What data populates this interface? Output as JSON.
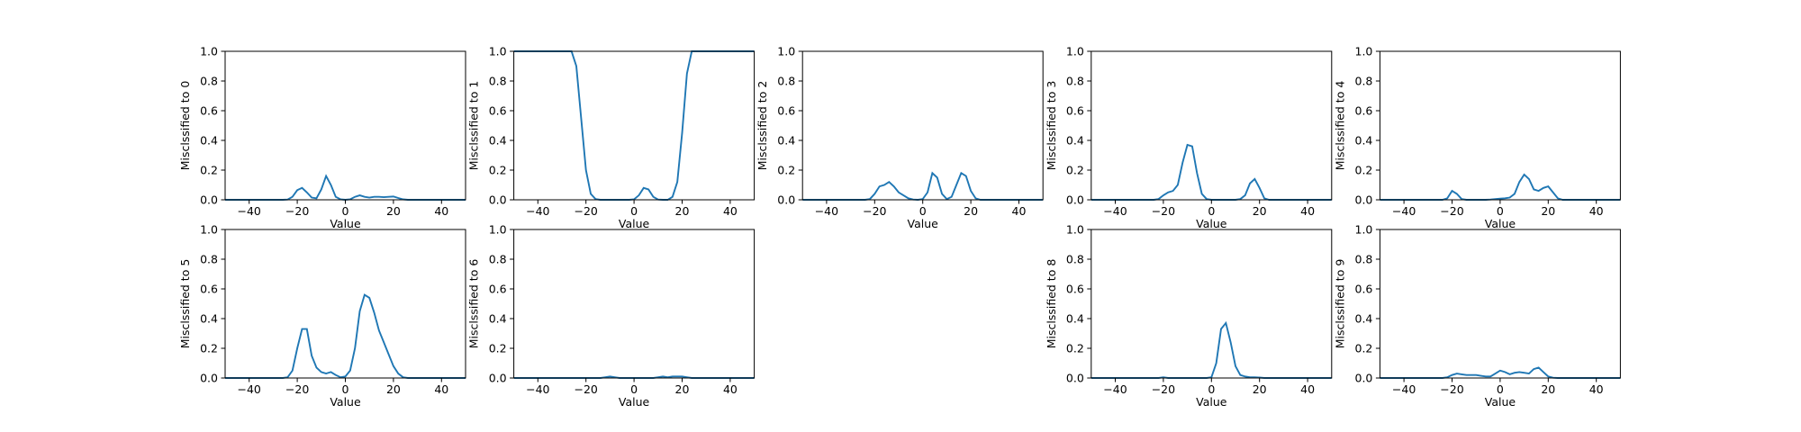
{
  "chart_data": [
    {
      "type": "line",
      "ylabel": "Misclssified to 0",
      "xlabel": "Value",
      "color": "#1f77b4",
      "x": [
        -50,
        -48,
        -46,
        -44,
        -42,
        -40,
        -38,
        -36,
        -34,
        -32,
        -30,
        -28,
        -26,
        -24,
        -22,
        -20,
        -18,
        -16,
        -14,
        -12,
        -10,
        -8,
        -6,
        -4,
        -2,
        0,
        2,
        4,
        6,
        8,
        10,
        12,
        14,
        16,
        18,
        20,
        22,
        24,
        26,
        28,
        30,
        32,
        34,
        36,
        38,
        40,
        42,
        44,
        46,
        48,
        50
      ],
      "values": [
        0,
        0,
        0,
        0,
        0,
        0,
        0,
        0,
        0,
        0,
        0,
        0,
        0,
        0.002,
        0.02,
        0.065,
        0.08,
        0.05,
        0.015,
        0.01,
        0.07,
        0.16,
        0.1,
        0.02,
        0.003,
        0,
        0.003,
        0.02,
        0.03,
        0.02,
        0.015,
        0.02,
        0.02,
        0.018,
        0.02,
        0.022,
        0.012,
        0.003,
        0,
        0,
        0,
        0,
        0,
        0,
        0,
        0,
        0,
        0,
        0,
        0,
        0
      ],
      "xlim": [
        -50,
        50
      ],
      "ylim": [
        0,
        1
      ],
      "xticks": [
        {
          "value": -40,
          "label": "−40"
        },
        {
          "value": -20,
          "label": "−20"
        },
        0,
        20,
        40
      ],
      "yticks": [
        {
          "value": 0,
          "label": "0.0"
        },
        {
          "value": 0.2,
          "label": "0.2"
        },
        {
          "value": 0.4,
          "label": "0.4"
        },
        {
          "value": 0.6,
          "label": "0.6"
        },
        {
          "value": 0.8,
          "label": "0.8"
        },
        {
          "value": 1,
          "label": "1.0"
        }
      ]
    },
    {
      "type": "line",
      "ylabel": "Misclssified to 1",
      "xlabel": "Value",
      "color": "#1f77b4",
      "x": [
        -50,
        -48,
        -46,
        -44,
        -42,
        -40,
        -38,
        -36,
        -34,
        -32,
        -30,
        -28,
        -26,
        -24,
        -22,
        -20,
        -18,
        -16,
        -14,
        -12,
        -10,
        -8,
        -6,
        -4,
        -2,
        0,
        2,
        4,
        6,
        8,
        10,
        12,
        14,
        16,
        18,
        20,
        22,
        24,
        26,
        28,
        30,
        32,
        34,
        36,
        38,
        40,
        42,
        44,
        46,
        48,
        50
      ],
      "values": [
        1,
        1,
        1,
        1,
        1,
        1,
        1,
        1,
        1,
        1,
        1,
        1,
        1,
        0.9,
        0.55,
        0.2,
        0.04,
        0.005,
        0,
        0,
        0,
        0,
        0,
        0,
        0,
        0.003,
        0.03,
        0.08,
        0.07,
        0.02,
        0.002,
        0,
        0,
        0.02,
        0.12,
        0.45,
        0.85,
        1,
        1,
        1,
        1,
        1,
        1,
        1,
        1,
        1,
        1,
        1,
        1,
        1,
        1
      ],
      "xlim": [
        -50,
        50
      ],
      "ylim": [
        0,
        1
      ],
      "xticks": [
        {
          "value": -40,
          "label": "−40"
        },
        {
          "value": -20,
          "label": "−20"
        },
        0,
        20,
        40
      ],
      "yticks": [
        {
          "value": 0,
          "label": "0.0"
        },
        {
          "value": 0.2,
          "label": "0.2"
        },
        {
          "value": 0.4,
          "label": "0.4"
        },
        {
          "value": 0.6,
          "label": "0.6"
        },
        {
          "value": 0.8,
          "label": "0.8"
        },
        {
          "value": 1,
          "label": "1.0"
        }
      ]
    },
    {
      "type": "line",
      "ylabel": "Misclssified to 2",
      "xlabel": "Value",
      "color": "#1f77b4",
      "x": [
        -50,
        -48,
        -46,
        -44,
        -42,
        -40,
        -38,
        -36,
        -34,
        -32,
        -30,
        -28,
        -26,
        -24,
        -22,
        -20,
        -18,
        -16,
        -14,
        -12,
        -10,
        -8,
        -6,
        -4,
        -2,
        0,
        2,
        4,
        6,
        8,
        10,
        12,
        14,
        16,
        18,
        20,
        22,
        24,
        26,
        28,
        30,
        32,
        34,
        36,
        38,
        40,
        42,
        44,
        46,
        48,
        50
      ],
      "values": [
        0,
        0,
        0,
        0,
        0,
        0,
        0,
        0,
        0,
        0,
        0,
        0,
        0,
        0,
        0.005,
        0.04,
        0.09,
        0.1,
        0.12,
        0.09,
        0.05,
        0.03,
        0.01,
        0.002,
        0,
        0.005,
        0.05,
        0.18,
        0.15,
        0.04,
        0.005,
        0.02,
        0.1,
        0.18,
        0.16,
        0.06,
        0.01,
        0,
        0,
        0,
        0,
        0,
        0,
        0,
        0,
        0,
        0,
        0,
        0,
        0,
        0
      ],
      "xlim": [
        -50,
        50
      ],
      "ylim": [
        0,
        1
      ],
      "xticks": [
        {
          "value": -40,
          "label": "−40"
        },
        {
          "value": -20,
          "label": "−20"
        },
        0,
        20,
        40
      ],
      "yticks": [
        {
          "value": 0,
          "label": "0.0"
        },
        {
          "value": 0.2,
          "label": "0.2"
        },
        {
          "value": 0.4,
          "label": "0.4"
        },
        {
          "value": 0.6,
          "label": "0.6"
        },
        {
          "value": 0.8,
          "label": "0.8"
        },
        {
          "value": 1,
          "label": "1.0"
        }
      ]
    },
    {
      "type": "line",
      "ylabel": "Misclssified to 3",
      "xlabel": "Value",
      "color": "#1f77b4",
      "x": [
        -50,
        -48,
        -46,
        -44,
        -42,
        -40,
        -38,
        -36,
        -34,
        -32,
        -30,
        -28,
        -26,
        -24,
        -22,
        -20,
        -18,
        -16,
        -14,
        -12,
        -10,
        -8,
        -6,
        -4,
        -2,
        0,
        2,
        4,
        6,
        8,
        10,
        12,
        14,
        16,
        18,
        20,
        22,
        24,
        26,
        28,
        30,
        32,
        34,
        36,
        38,
        40,
        42,
        44,
        46,
        48,
        50
      ],
      "values": [
        0,
        0,
        0,
        0,
        0,
        0,
        0,
        0,
        0,
        0,
        0,
        0,
        0,
        0,
        0.005,
        0.03,
        0.05,
        0.06,
        0.1,
        0.25,
        0.37,
        0.36,
        0.18,
        0.04,
        0.005,
        0,
        0,
        0,
        0,
        0,
        0,
        0.005,
        0.03,
        0.11,
        0.14,
        0.08,
        0.01,
        0,
        0,
        0,
        0,
        0,
        0,
        0,
        0,
        0,
        0,
        0,
        0,
        0,
        0
      ],
      "xlim": [
        -50,
        50
      ],
      "ylim": [
        0,
        1
      ],
      "xticks": [
        {
          "value": -40,
          "label": "−40"
        },
        {
          "value": -20,
          "label": "−20"
        },
        0,
        20,
        40
      ],
      "yticks": [
        {
          "value": 0,
          "label": "0.0"
        },
        {
          "value": 0.2,
          "label": "0.2"
        },
        {
          "value": 0.4,
          "label": "0.4"
        },
        {
          "value": 0.6,
          "label": "0.6"
        },
        {
          "value": 0.8,
          "label": "0.8"
        },
        {
          "value": 1,
          "label": "1.0"
        }
      ]
    },
    {
      "type": "line",
      "ylabel": "Misclssified to 4",
      "xlabel": "Value",
      "color": "#1f77b4",
      "x": [
        -50,
        -48,
        -46,
        -44,
        -42,
        -40,
        -38,
        -36,
        -34,
        -32,
        -30,
        -28,
        -26,
        -24,
        -22,
        -20,
        -18,
        -16,
        -14,
        -12,
        -10,
        -8,
        -6,
        -4,
        -2,
        0,
        2,
        4,
        6,
        8,
        10,
        12,
        14,
        16,
        18,
        20,
        22,
        24,
        26,
        28,
        30,
        32,
        34,
        36,
        38,
        40,
        42,
        44,
        46,
        48,
        50
      ],
      "values": [
        0,
        0,
        0,
        0,
        0,
        0,
        0,
        0,
        0,
        0,
        0,
        0,
        0,
        0,
        0.01,
        0.06,
        0.04,
        0.005,
        0,
        0,
        0,
        0,
        0,
        0.002,
        0.005,
        0.008,
        0.01,
        0.015,
        0.04,
        0.12,
        0.17,
        0.14,
        0.07,
        0.06,
        0.08,
        0.09,
        0.05,
        0.01,
        0,
        0,
        0,
        0,
        0,
        0,
        0,
        0,
        0,
        0,
        0,
        0,
        0
      ],
      "xlim": [
        -50,
        50
      ],
      "ylim": [
        0,
        1
      ],
      "xticks": [
        {
          "value": -40,
          "label": "−40"
        },
        {
          "value": -20,
          "label": "−20"
        },
        0,
        20,
        40
      ],
      "yticks": [
        {
          "value": 0,
          "label": "0.0"
        },
        {
          "value": 0.2,
          "label": "0.2"
        },
        {
          "value": 0.4,
          "label": "0.4"
        },
        {
          "value": 0.6,
          "label": "0.6"
        },
        {
          "value": 0.8,
          "label": "0.8"
        },
        {
          "value": 1,
          "label": "1.0"
        }
      ]
    },
    {
      "type": "line",
      "ylabel": "Misclssified to 5",
      "xlabel": "Value",
      "color": "#1f77b4",
      "x": [
        -50,
        -48,
        -46,
        -44,
        -42,
        -40,
        -38,
        -36,
        -34,
        -32,
        -30,
        -28,
        -26,
        -24,
        -22,
        -20,
        -18,
        -16,
        -14,
        -12,
        -10,
        -8,
        -6,
        -4,
        -2,
        0,
        2,
        4,
        6,
        8,
        10,
        12,
        14,
        16,
        18,
        20,
        22,
        24,
        26,
        28,
        30,
        32,
        34,
        36,
        38,
        40,
        42,
        44,
        46,
        48,
        50
      ],
      "values": [
        0,
        0,
        0,
        0,
        0,
        0,
        0,
        0,
        0,
        0,
        0,
        0,
        0,
        0.005,
        0.05,
        0.2,
        0.33,
        0.33,
        0.15,
        0.07,
        0.04,
        0.03,
        0.04,
        0.02,
        0.005,
        0.01,
        0.05,
        0.2,
        0.45,
        0.56,
        0.54,
        0.44,
        0.32,
        0.24,
        0.16,
        0.08,
        0.03,
        0.005,
        0,
        0,
        0,
        0,
        0,
        0,
        0,
        0,
        0,
        0,
        0,
        0,
        0
      ],
      "xlim": [
        -50,
        50
      ],
      "ylim": [
        0,
        1
      ],
      "xticks": [
        {
          "value": -40,
          "label": "−40"
        },
        {
          "value": -20,
          "label": "−20"
        },
        0,
        20,
        40
      ],
      "yticks": [
        {
          "value": 0,
          "label": "0.0"
        },
        {
          "value": 0.2,
          "label": "0.2"
        },
        {
          "value": 0.4,
          "label": "0.4"
        },
        {
          "value": 0.6,
          "label": "0.6"
        },
        {
          "value": 0.8,
          "label": "0.8"
        },
        {
          "value": 1,
          "label": "1.0"
        }
      ]
    },
    {
      "type": "line",
      "ylabel": "Misclssified to 6",
      "xlabel": "Value",
      "color": "#1f77b4",
      "x": [
        -50,
        -48,
        -46,
        -44,
        -42,
        -40,
        -38,
        -36,
        -34,
        -32,
        -30,
        -28,
        -26,
        -24,
        -22,
        -20,
        -18,
        -16,
        -14,
        -12,
        -10,
        -8,
        -6,
        -4,
        -2,
        0,
        2,
        4,
        6,
        8,
        10,
        12,
        14,
        16,
        18,
        20,
        22,
        24,
        26,
        28,
        30,
        32,
        34,
        36,
        38,
        40,
        42,
        44,
        46,
        48,
        50
      ],
      "values": [
        0,
        0,
        0,
        0,
        0,
        0,
        0,
        0,
        0,
        0,
        0,
        0,
        0,
        0,
        0,
        0,
        0,
        0,
        0,
        0.005,
        0.01,
        0.005,
        0,
        0,
        0,
        0,
        0,
        0,
        0,
        0,
        0.005,
        0.01,
        0.005,
        0.01,
        0.01,
        0.01,
        0.005,
        0,
        0,
        0,
        0,
        0,
        0,
        0,
        0,
        0,
        0,
        0,
        0,
        0,
        0
      ],
      "xlim": [
        -50,
        50
      ],
      "ylim": [
        0,
        1
      ],
      "xticks": [
        {
          "value": -40,
          "label": "−40"
        },
        {
          "value": -20,
          "label": "−20"
        },
        0,
        20,
        40
      ],
      "yticks": [
        {
          "value": 0,
          "label": "0.0"
        },
        {
          "value": 0.2,
          "label": "0.2"
        },
        {
          "value": 0.4,
          "label": "0.4"
        },
        {
          "value": 0.6,
          "label": "0.6"
        },
        {
          "value": 0.8,
          "label": "0.8"
        },
        {
          "value": 1,
          "label": "1.0"
        }
      ]
    },
    {
      "type": "line",
      "ylabel": "Misclssified to 8",
      "xlabel": "Value",
      "color": "#1f77b4",
      "x": [
        -50,
        -48,
        -46,
        -44,
        -42,
        -40,
        -38,
        -36,
        -34,
        -32,
        -30,
        -28,
        -26,
        -24,
        -22,
        -20,
        -18,
        -16,
        -14,
        -12,
        -10,
        -8,
        -6,
        -4,
        -2,
        0,
        2,
        4,
        6,
        8,
        10,
        12,
        14,
        16,
        18,
        20,
        22,
        24,
        26,
        28,
        30,
        32,
        34,
        36,
        38,
        40,
        42,
        44,
        46,
        48,
        50
      ],
      "values": [
        0,
        0,
        0,
        0,
        0,
        0,
        0,
        0,
        0,
        0,
        0,
        0,
        0,
        0,
        0,
        0.005,
        0,
        0,
        0,
        0,
        0,
        0,
        0,
        0,
        0,
        0.005,
        0.1,
        0.33,
        0.37,
        0.24,
        0.08,
        0.02,
        0.01,
        0.005,
        0.005,
        0.003,
        0,
        0,
        0,
        0,
        0,
        0,
        0,
        0,
        0,
        0,
        0,
        0,
        0,
        0,
        0
      ],
      "xlim": [
        -50,
        50
      ],
      "ylim": [
        0,
        1
      ],
      "xticks": [
        {
          "value": -40,
          "label": "−40"
        },
        {
          "value": -20,
          "label": "−20"
        },
        0,
        20,
        40
      ],
      "yticks": [
        {
          "value": 0,
          "label": "0.0"
        },
        {
          "value": 0.2,
          "label": "0.2"
        },
        {
          "value": 0.4,
          "label": "0.4"
        },
        {
          "value": 0.6,
          "label": "0.6"
        },
        {
          "value": 0.8,
          "label": "0.8"
        },
        {
          "value": 1,
          "label": "1.0"
        }
      ]
    },
    {
      "type": "line",
      "ylabel": "Misclssified to 9",
      "xlabel": "Value",
      "color": "#1f77b4",
      "x": [
        -50,
        -48,
        -46,
        -44,
        -42,
        -40,
        -38,
        -36,
        -34,
        -32,
        -30,
        -28,
        -26,
        -24,
        -22,
        -20,
        -18,
        -16,
        -14,
        -12,
        -10,
        -8,
        -6,
        -4,
        -2,
        0,
        2,
        4,
        6,
        8,
        10,
        12,
        14,
        16,
        18,
        20,
        22,
        24,
        26,
        28,
        30,
        32,
        34,
        36,
        38,
        40,
        42,
        44,
        46,
        48,
        50
      ],
      "values": [
        0,
        0,
        0,
        0,
        0,
        0,
        0,
        0,
        0,
        0,
        0,
        0,
        0,
        0,
        0.005,
        0.02,
        0.03,
        0.025,
        0.02,
        0.02,
        0.02,
        0.015,
        0.01,
        0.01,
        0.03,
        0.05,
        0.04,
        0.025,
        0.035,
        0.04,
        0.035,
        0.03,
        0.06,
        0.07,
        0.04,
        0.01,
        0.002,
        0,
        0,
        0,
        0,
        0,
        0,
        0,
        0,
        0,
        0,
        0,
        0,
        0,
        0
      ],
      "xlim": [
        -50,
        50
      ],
      "ylim": [
        0,
        1
      ],
      "xticks": [
        {
          "value": -40,
          "label": "−40"
        },
        {
          "value": -20,
          "label": "−20"
        },
        0,
        20,
        40
      ],
      "yticks": [
        {
          "value": 0,
          "label": "0.0"
        },
        {
          "value": 0.2,
          "label": "0.2"
        },
        {
          "value": 0.4,
          "label": "0.4"
        },
        {
          "value": 0.6,
          "label": "0.6"
        },
        {
          "value": 0.8,
          "label": "0.8"
        },
        {
          "value": 1,
          "label": "1.0"
        }
      ]
    }
  ]
}
